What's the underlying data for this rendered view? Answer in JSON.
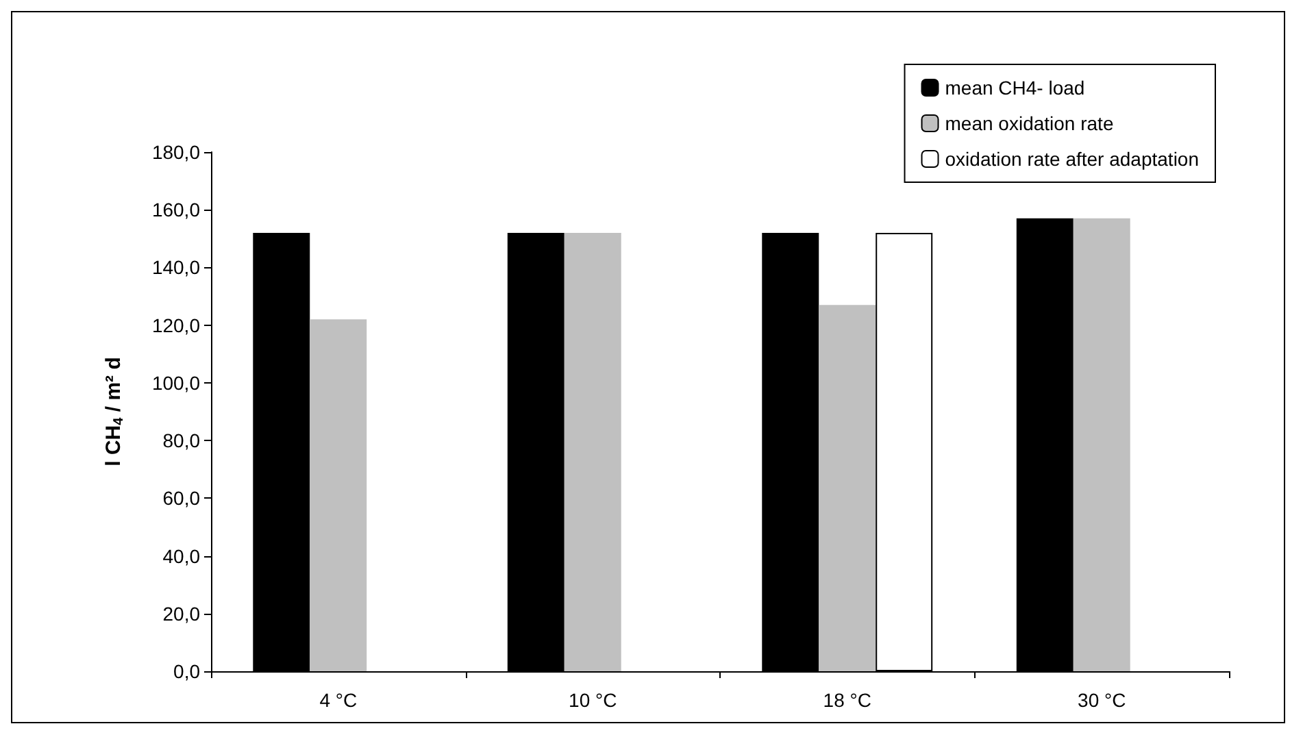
{
  "chart_data": {
    "type": "bar",
    "ylabel": "l CH$_{4}$ / m² d",
    "categories": [
      "4 °C",
      "10 °C",
      "18 °C",
      "30 °C"
    ],
    "series": [
      {
        "name": "mean CH4- load",
        "color": "#000000",
        "values": [
          152,
          152,
          152,
          157
        ]
      },
      {
        "name": "mean oxidation rate",
        "color": "#c0c0c0",
        "values": [
          122,
          152,
          127,
          157
        ]
      },
      {
        "name": "oxidation rate after adaptation",
        "color": "#ffffff",
        "values": [
          null,
          null,
          152,
          null
        ]
      }
    ],
    "ylim": [
      0,
      180
    ],
    "yticks": [
      {
        "value": 0,
        "label": "0,0"
      },
      {
        "value": 20,
        "label": "20,0"
      },
      {
        "value": 40,
        "label": "40,0"
      },
      {
        "value": 60,
        "label": "60,0"
      },
      {
        "value": 80,
        "label": "80,0"
      },
      {
        "value": 100,
        "label": "100,0"
      },
      {
        "value": 120,
        "label": "120,0"
      },
      {
        "value": 140,
        "label": "140,0"
      },
      {
        "value": 160,
        "label": "160,0"
      },
      {
        "value": 180,
        "label": "180,0"
      }
    ],
    "grid": false,
    "legend": "top right"
  }
}
